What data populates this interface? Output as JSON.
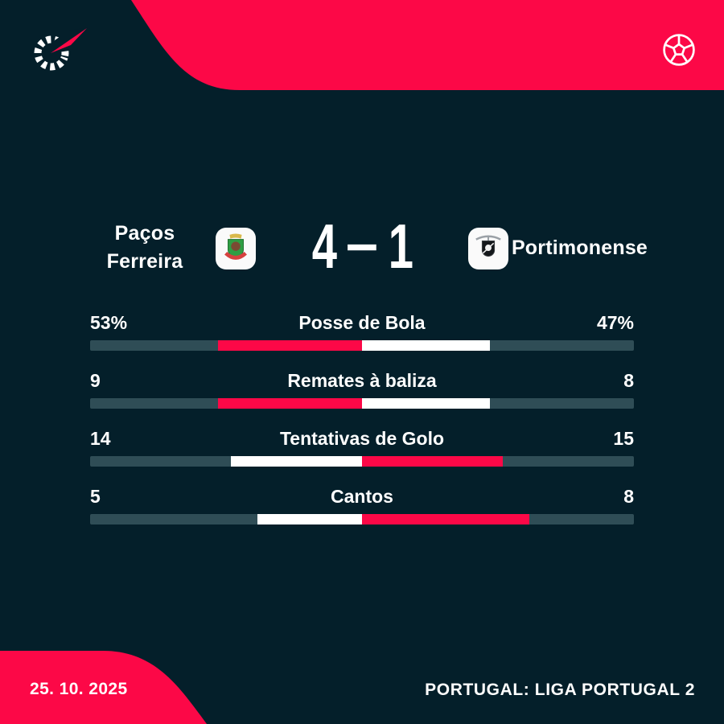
{
  "colors": {
    "accent": "#fc0847",
    "background": "#041f2a",
    "bar_background": "#2f4d56",
    "white": "#ffffff"
  },
  "header": {
    "home_team": {
      "name": "Paços Ferreira"
    },
    "away_team": {
      "name": "Portimonense"
    },
    "score": {
      "home": "4",
      "separator": "-",
      "away": "1"
    }
  },
  "stats": {
    "rows": [
      {
        "home": "53%",
        "label": "Posse de Bola",
        "away": "47%",
        "home_value": 53,
        "away_value": 47
      },
      {
        "home": "9",
        "label": "Remates à baliza",
        "away": "8",
        "home_value": 9,
        "away_value": 8
      },
      {
        "home": "14",
        "label": "Tentativas de Golo",
        "away": "15",
        "home_value": 14,
        "away_value": 15
      },
      {
        "home": "5",
        "label": "Cantos",
        "away": "8",
        "home_value": 5,
        "away_value": 8
      }
    ]
  },
  "footer": {
    "date": "25. 10. 2025",
    "league": "PORTUGAL: LIGA PORTUGAL 2"
  },
  "icons": {
    "top_left": "flashscore-logo",
    "top_right": "soccer-ball-icon",
    "home_crest": "pacos-ferreira-crest",
    "away_crest": "portimonense-crest"
  },
  "chart_data": {
    "type": "bar",
    "title": "Paços Ferreira 4-1 Portimonense",
    "categories": [
      "Posse de Bola",
      "Remates à baliza",
      "Tentativas de Golo",
      "Cantos"
    ],
    "series": [
      {
        "name": "Paços Ferreira",
        "values": [
          53,
          9,
          14,
          5
        ]
      },
      {
        "name": "Portimonense",
        "values": [
          47,
          8,
          15,
          8
        ]
      }
    ],
    "layout": "center-anchored horizontal duel bars; each side length = value share of half bar; leading side colored accent red, trailing side white",
    "legend_position": "none",
    "grid": false
  }
}
